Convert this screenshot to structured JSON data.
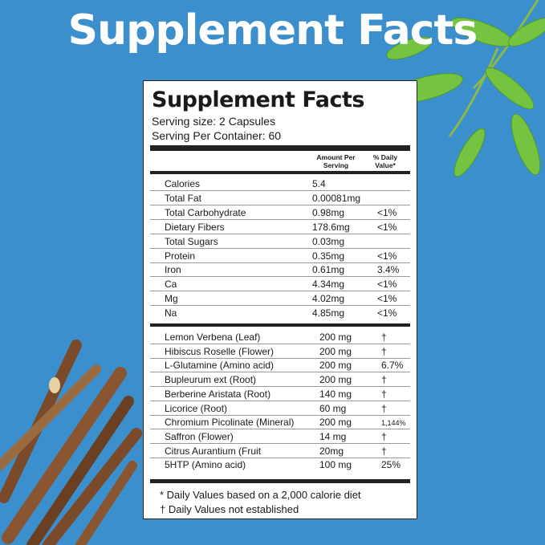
{
  "hero_title": "Supplement Facts",
  "label": {
    "title": "Supplement Facts",
    "serving_size": "Serving size: 2 Capsules",
    "servings_per_container": "Serving Per Container: 60",
    "col_amount": "Amount Per Serving",
    "col_dv": "% Daily Value*",
    "nutrients": [
      {
        "name": "Calories",
        "amount": "5.4",
        "dv": ""
      },
      {
        "name": "Total Fat",
        "amount": "0.00081mg",
        "dv": ""
      },
      {
        "name": "Total Carbohydrate",
        "amount": "0.98mg",
        "dv": "<1%"
      },
      {
        "name": "Dietary Fibers",
        "amount": "178.6mg",
        "dv": "<1%"
      },
      {
        "name": "Total Sugars",
        "amount": "0.03mg",
        "dv": ""
      },
      {
        "name": "Protein",
        "amount": "0.35mg",
        "dv": "<1%"
      },
      {
        "name": "Iron",
        "amount": "0.61mg",
        "dv": "3.4%"
      },
      {
        "name": "Ca",
        "amount": "4.34mg",
        "dv": "<1%"
      },
      {
        "name": "Mg",
        "amount": "4.02mg",
        "dv": "<1%"
      },
      {
        "name": "Na",
        "amount": "4.85mg",
        "dv": "<1%"
      }
    ],
    "ingredients": [
      {
        "name": "Lemon Verbena (Leaf)",
        "amount": "200 mg",
        "dv": "†"
      },
      {
        "name": "Hibiscus Roselle (Flower)",
        "amount": "200 mg",
        "dv": "†"
      },
      {
        "name": "L-Glutamine (Amino acid)",
        "amount": "200 mg",
        "dv": "6.7%"
      },
      {
        "name": "Bupleurum ext (Root)",
        "amount": "200 mg",
        "dv": "†"
      },
      {
        "name": "Berberine Aristata (Root)",
        "amount": "140 mg",
        "dv": "†"
      },
      {
        "name": "Licorice (Root)",
        "amount": "60 mg",
        "dv": "†"
      },
      {
        "name": "Chromium Picolinate (Mineral)",
        "amount": "200 mg",
        "dv": "1,144%"
      },
      {
        "name": "Saffron (Flower)",
        "amount": "14 mg",
        "dv": "†"
      },
      {
        "name": "Citrus Aurantium (Fruit",
        "amount": "20mg",
        "dv": "†"
      },
      {
        "name": "5HTP  (Amino acid)",
        "amount": "100 mg",
        "dv": "25%"
      }
    ],
    "footnote_1": "* Daily Values based on a 2,000 calorie diet",
    "footnote_2": "† Daily Values not established"
  },
  "colors": {
    "background": "#3b8fcc",
    "leaf": "#6cbf3a",
    "licorice": "#7a4a2a"
  }
}
